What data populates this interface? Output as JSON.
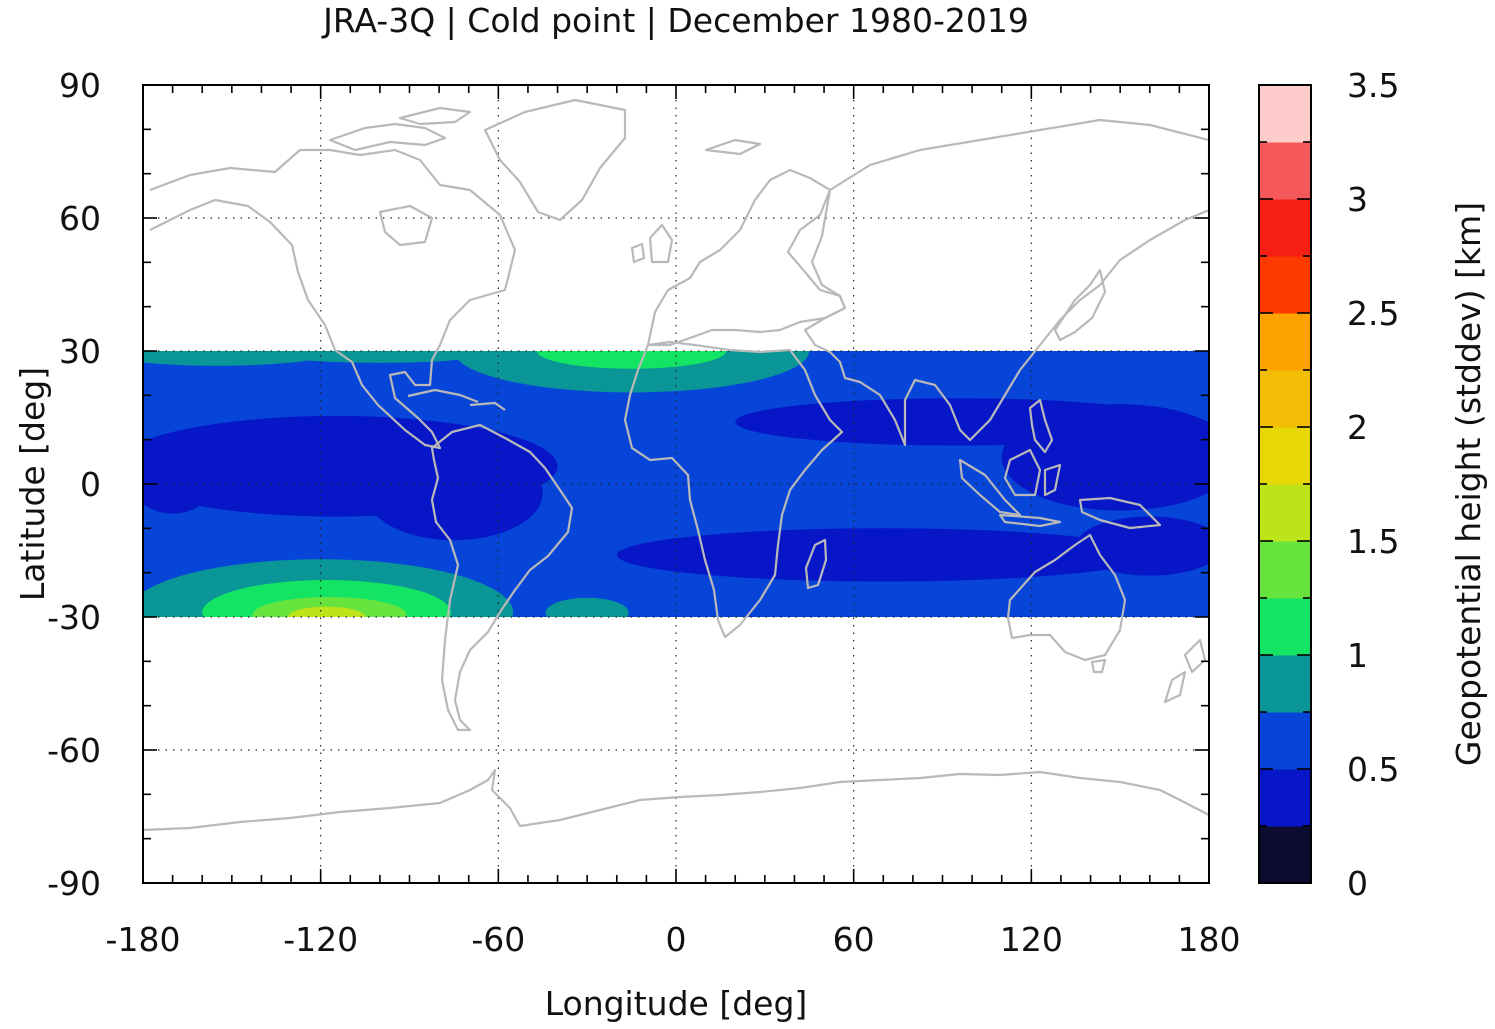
{
  "chart_data": {
    "type": "heatmap",
    "title": "JRA-3Q | Cold point | December 1980-2019",
    "xlabel": "Longitude [deg]",
    "ylabel": "Latitude [deg]",
    "colorbar_label": "Geopotential height (stddev) [km]",
    "xlim": [
      -180,
      180
    ],
    "ylim": [
      -90,
      90
    ],
    "data_lat_range": [
      -30,
      30
    ],
    "x_ticks": [
      -180,
      -120,
      -60,
      0,
      60,
      120,
      180
    ],
    "y_ticks": [
      -90,
      -60,
      -30,
      0,
      30,
      60,
      90
    ],
    "x_tick_labels": [
      "-180",
      "-120",
      "-60",
      "0",
      "60",
      "120",
      "180"
    ],
    "y_tick_labels": [
      "-90",
      "-60",
      "-30",
      "0",
      "30",
      "60",
      "90"
    ],
    "grid": "dotted",
    "colorbar": {
      "range": [
        0,
        3.5
      ],
      "step": 0.25,
      "ticks": [
        0,
        0.5,
        1,
        1.5,
        2,
        2.5,
        3,
        3.5
      ],
      "tick_labels": [
        "0",
        "0.5",
        "1",
        "1.5",
        "2",
        "2.5",
        "3",
        "3.5"
      ],
      "colors": [
        "#0c0c30",
        "#0717c8",
        "#0745d8",
        "#0a9696",
        "#13e464",
        "#66e33d",
        "#bde319",
        "#e8d707",
        "#f3bd05",
        "#fba201",
        "#fe3a00",
        "#f51f13",
        "#f45858",
        "#ffcccc"
      ]
    },
    "field_description": "Standard deviation of cold point geopotential height; background 0.5-0.75 km; minima 0.25-0.5 km over central Pacific/South America, Africa-Indian Ocean and southern Indian Ocean-Australia; maxima near 30S,120W (up to 1.5-1.75 km) and near 30N,10W (1-1.25 km)",
    "blobs": [
      {
        "lon": -120,
        "lat": -29,
        "rx": 65,
        "ry": 18,
        "value": 0.875
      },
      {
        "lon": -118,
        "lat": -29,
        "rx": 42,
        "ry": 11,
        "value": 1.125
      },
      {
        "lon": -117,
        "lat": -29.5,
        "rx": 26,
        "ry": 6,
        "value": 1.375
      },
      {
        "lon": -118,
        "lat": -30,
        "rx": 13,
        "ry": 3.5,
        "value": 1.625
      },
      {
        "lon": -30,
        "lat": -29,
        "rx": 14,
        "ry": 5,
        "value": 0.875
      },
      {
        "lon": -155,
        "lat": 30,
        "rx": 40,
        "ry": 5,
        "value": 0.875
      },
      {
        "lon": -15,
        "lat": 30,
        "rx": 60,
        "ry": 14,
        "value": 0.875
      },
      {
        "lon": -15,
        "lat": 30,
        "rx": 32,
        "ry": 6,
        "value": 1.125
      },
      {
        "lon": -100,
        "lat": 30,
        "rx": 40,
        "ry": 4,
        "value": 0.875
      },
      {
        "lon": -115,
        "lat": 4,
        "rx": 75,
        "ry": 17,
        "value": 0.375
      },
      {
        "lon": -75,
        "lat": -2,
        "rx": 30,
        "ry": 16,
        "value": 0.375
      },
      {
        "lon": -170,
        "lat": 2,
        "rx": 15,
        "ry": 13,
        "value": 0.375
      },
      {
        "lon": 95,
        "lat": 14,
        "rx": 75,
        "ry": 8,
        "value": 0.375
      },
      {
        "lon": 150,
        "lat": 6,
        "rx": 40,
        "ry": 18,
        "value": 0.375
      },
      {
        "lon": 70,
        "lat": -16,
        "rx": 90,
        "ry": 9,
        "value": 0.375
      },
      {
        "lon": 160,
        "lat": -14,
        "rx": 25,
        "ry": 10,
        "value": 0.375
      }
    ]
  }
}
